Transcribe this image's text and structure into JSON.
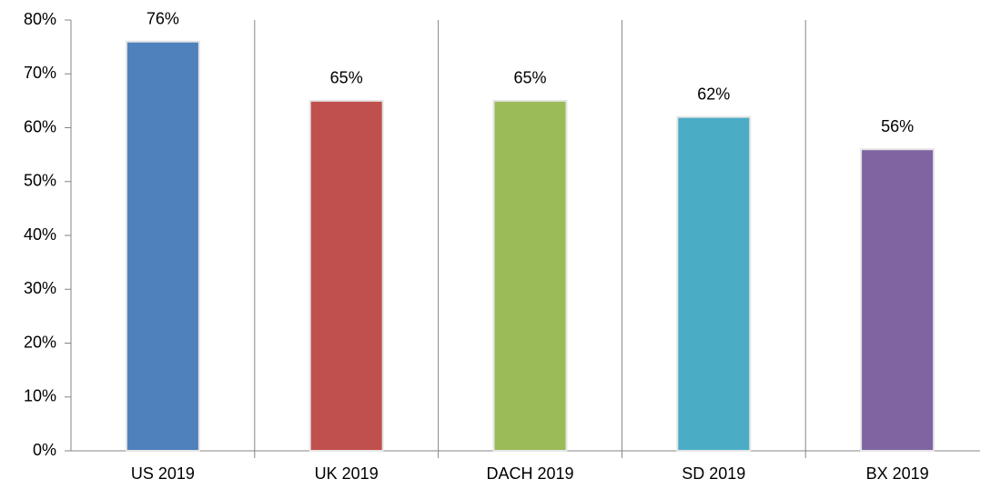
{
  "chart_data": {
    "type": "bar",
    "categories": [
      "US 2019",
      "UK 2019",
      "DACH 2019",
      "SD 2019",
      "BX 2019"
    ],
    "values": [
      76,
      65,
      65,
      62,
      56
    ],
    "value_labels": [
      "76%",
      "65%",
      "65%",
      "62%",
      "56%"
    ],
    "colors": [
      "#4f81bd",
      "#c0504d",
      "#9bbb59",
      "#4bacc6",
      "#8064a2"
    ],
    "ylim": [
      0,
      80
    ],
    "yticks": [
      {
        "value": 0,
        "label": "0%"
      },
      {
        "value": 10,
        "label": "10%"
      },
      {
        "value": 20,
        "label": "20%"
      },
      {
        "value": 30,
        "label": "30%"
      },
      {
        "value": 40,
        "label": "40%"
      },
      {
        "value": 50,
        "label": "50%"
      },
      {
        "value": 60,
        "label": "60%"
      },
      {
        "value": 70,
        "label": "70%"
      },
      {
        "value": 80,
        "label": "80%"
      }
    ],
    "grid": false
  }
}
